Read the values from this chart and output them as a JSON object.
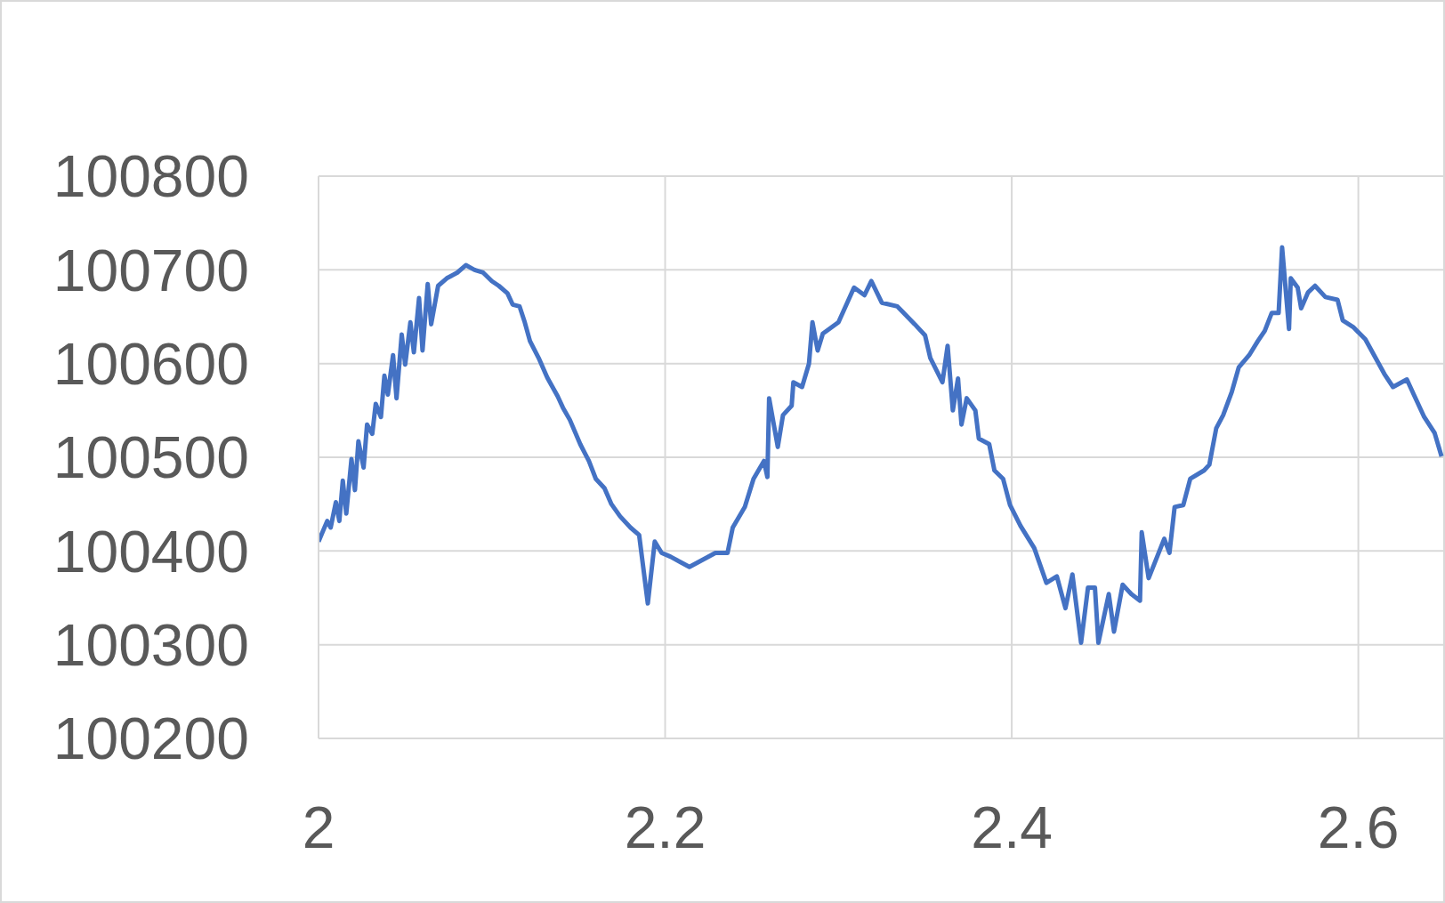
{
  "chart_data": {
    "type": "line",
    "x": [
      2.0,
      2.005,
      2.007,
      2.01,
      2.012,
      2.014,
      2.016,
      2.019,
      2.021,
      2.023,
      2.026,
      2.028,
      2.031,
      2.033,
      2.036,
      2.038,
      2.04,
      2.043,
      2.045,
      2.048,
      2.05,
      2.053,
      2.055,
      2.058,
      2.06,
      2.063,
      2.065,
      2.069,
      2.074,
      2.08,
      2.085,
      2.09,
      2.095,
      2.1,
      2.104,
      2.109,
      2.112,
      2.116,
      2.119,
      2.122,
      2.127,
      2.132,
      2.138,
      2.141,
      2.145,
      2.151,
      2.156,
      2.16,
      2.165,
      2.169,
      2.174,
      2.18,
      2.185,
      2.19,
      2.194,
      2.198,
      2.203,
      2.209,
      2.214,
      2.219,
      2.229,
      2.236,
      2.239,
      2.246,
      2.251,
      2.257,
      2.259,
      2.26,
      2.265,
      2.268,
      2.273,
      2.274,
      2.279,
      2.283,
      2.285,
      2.288,
      2.291,
      2.3,
      2.309,
      2.315,
      2.319,
      2.325,
      2.334,
      2.344,
      2.35,
      2.353,
      2.36,
      2.363,
      2.366,
      2.369,
      2.371,
      2.374,
      2.379,
      2.381,
      2.387,
      2.39,
      2.395,
      2.399,
      2.405,
      2.413,
      2.42,
      2.426,
      2.431,
      2.435,
      2.44,
      2.444,
      2.448,
      2.45,
      2.456,
      2.459,
      2.464,
      2.469,
      2.474,
      2.475,
      2.479,
      2.488,
      2.491,
      2.494,
      2.499,
      2.503,
      2.511,
      2.514,
      2.518,
      2.522,
      2.527,
      2.531,
      2.537,
      2.542,
      2.546,
      2.55,
      2.554,
      2.556,
      2.56,
      2.561,
      2.565,
      2.567,
      2.571,
      2.575,
      2.581,
      2.588,
      2.591,
      2.597,
      2.604,
      2.615,
      2.62,
      2.628,
      2.632,
      2.638,
      2.644,
      2.648
    ],
    "series": [
      {
        "color": "#4472c4",
        "values": [
          100410,
          100432,
          100425,
          100452,
          100432,
          100475,
          100440,
          100498,
          100465,
          100517,
          100489,
          100535,
          100525,
          100557,
          100543,
          100587,
          100567,
          100609,
          100563,
          100631,
          100599,
          100644,
          100612,
          100670,
          100614,
          100685,
          100642,
          100683,
          100691,
          100697,
          100705,
          100700,
          100697,
          100688,
          100683,
          100675,
          100663,
          100661,
          100644,
          100624,
          100606,
          100585,
          100565,
          100553,
          100540,
          100514,
          100496,
          100477,
          100467,
          100450,
          100437,
          100425,
          100417,
          100344,
          100410,
          100398,
          100394,
          100388,
          100383,
          100388,
          100398,
          100398,
          100425,
          100447,
          100477,
          100496,
          100479,
          100563,
          100511,
          100545,
          100555,
          100580,
          100575,
          100600,
          100644,
          100614,
          100632,
          100644,
          100681,
          100673,
          100688,
          100665,
          100661,
          100642,
          100630,
          100606,
          100580,
          100619,
          100550,
          100584,
          100535,
          100563,
          100550,
          100520,
          100514,
          100486,
          100477,
          100449,
          100427,
          100403,
          100366,
          100373,
          100339,
          100375,
          100302,
          100361,
          100361,
          100302,
          100354,
          100314,
          100364,
          100354,
          100347,
          100420,
          100371,
          100413,
          100398,
          100447,
          100449,
          100477,
          100486,
          100492,
          100531,
          100545,
          100570,
          100596,
          100609,
          100624,
          100635,
          100654,
          100654,
          100724,
          100637,
          100691,
          100681,
          100659,
          100676,
          100683,
          100671,
          100668,
          100646,
          100639,
          100626,
          100589,
          100575,
          100583,
          100567,
          100543,
          100526,
          100501
        ]
      }
    ],
    "xlim": [
      2,
      2.65
    ],
    "xticks": [
      2,
      2.2,
      2.4,
      2.6
    ],
    "ylim": [
      100200,
      100800
    ],
    "yticks": [
      100200,
      100300,
      100400,
      100500,
      100600,
      100700,
      100800
    ],
    "grid": true,
    "marker": "none",
    "line_style": "solid"
  }
}
